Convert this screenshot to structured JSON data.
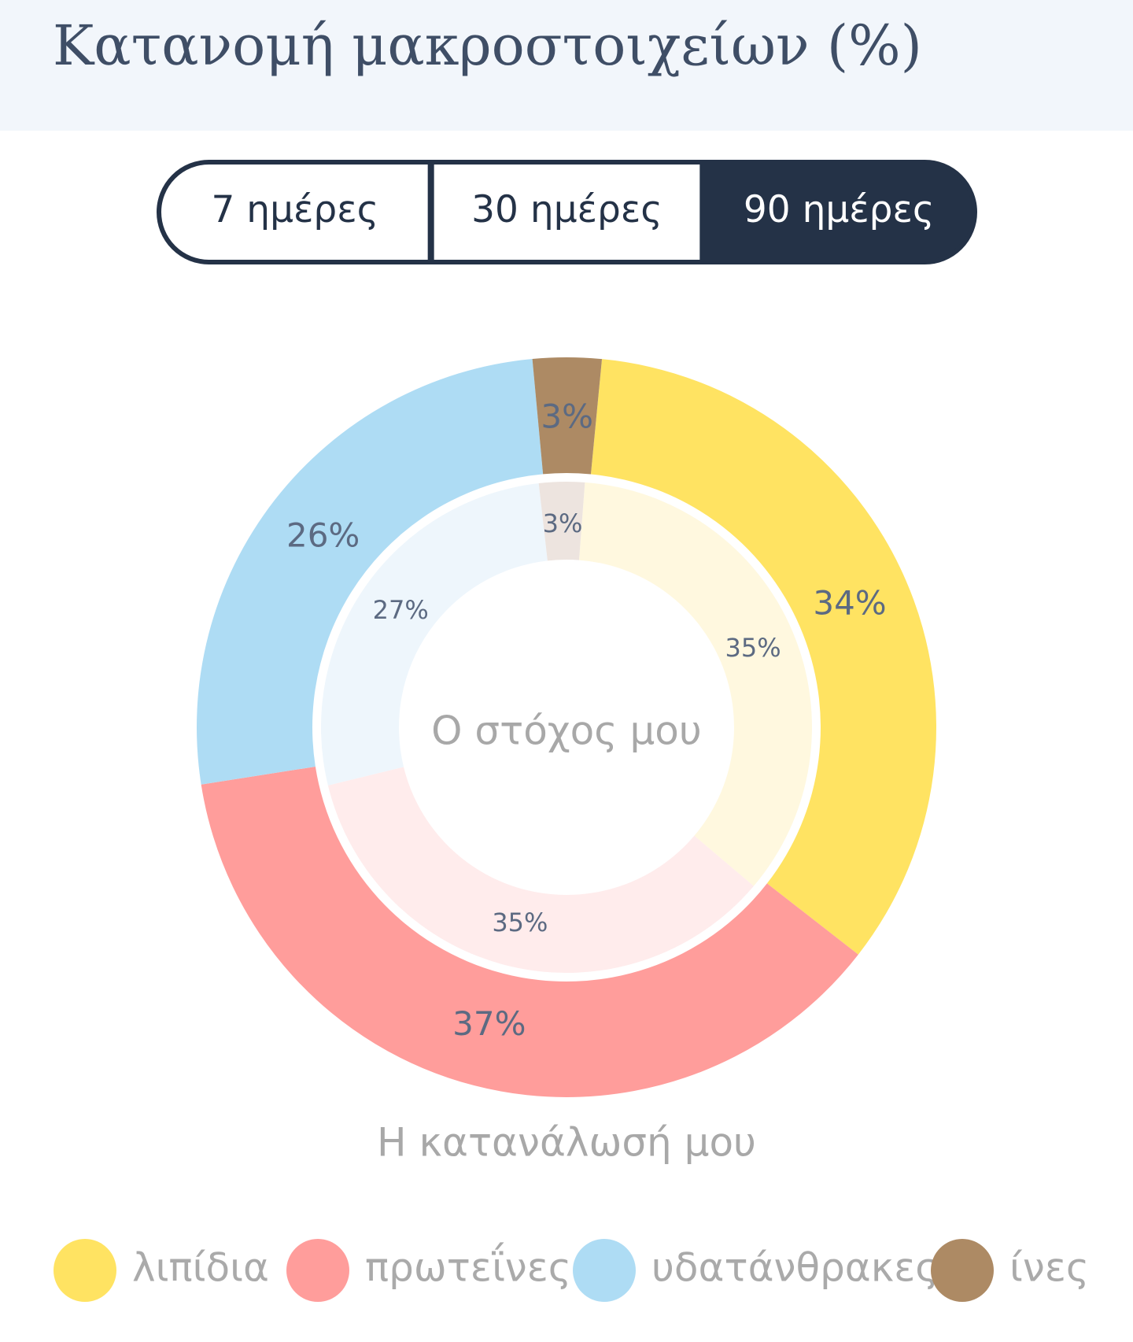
{
  "header": {
    "title": "Κατανομή μακροστοιχείων (%)"
  },
  "tabs": {
    "options": [
      "7 ημέρες",
      "30 ημέρες",
      "90 ημέρες"
    ],
    "selected": 2
  },
  "chart_data": {
    "type": "donut",
    "categories": [
      "λιπίδια",
      "πρωτεΐνες",
      "υδατάνθρακες",
      "ίνες"
    ],
    "colors": [
      "#FFE362",
      "#FF9D9B",
      "#AEDCF4",
      "#AD8A64"
    ],
    "series": [
      {
        "name": "Ο στόχος μου",
        "colors": [
          "#FFF8DF",
          "#FFECEC",
          "#EEF6FC",
          "#EDE4DF"
        ],
        "values": [
          35,
          35,
          27,
          3
        ],
        "value_labels": [
          "35%",
          "35%",
          "27%",
          "3%"
        ]
      },
      {
        "name": "Η κατανάλωσή μου",
        "colors": [
          "#FFE362",
          "#FF9D9B",
          "#AEDCF4",
          "#AD8A64"
        ],
        "values": [
          34,
          37,
          26,
          3
        ],
        "value_labels": [
          "34%",
          "37%",
          "26%",
          "3%"
        ]
      }
    ]
  }
}
